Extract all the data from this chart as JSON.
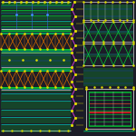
{
  "bg_color": "#1c1c28",
  "colors": {
    "green": "#00dd33",
    "bright_green": "#33ff55",
    "cyan": "#00ccbb",
    "yellow": "#dddd00",
    "magenta": "#cc33cc",
    "pink": "#ee44aa",
    "white": "#cccccc",
    "red": "#dd2222",
    "blue": "#3366dd",
    "orange": "#cc6600",
    "light_blue": "#4488ff",
    "gray": "#555566"
  },
  "figsize": [
    1.5,
    1.5
  ],
  "dpi": 100
}
